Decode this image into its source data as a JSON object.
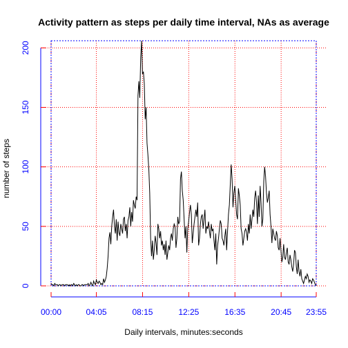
{
  "chart_data": {
    "type": "line",
    "title": "Activity pattern as steps per daily time interval, NAs as average",
    "xlabel": "Daily intervals, minutes:seconds",
    "ylabel": "number of steps",
    "x_tick_labels": [
      "00:00",
      "04:05",
      "08:15",
      "12:25",
      "16:35",
      "20:45",
      "23:55"
    ],
    "x_tick_indices": [
      0,
      49,
      99,
      149,
      199,
      249,
      287
    ],
    "y_ticks": [
      0,
      50,
      100,
      150,
      200
    ],
    "xlim": [
      0,
      287
    ],
    "ylim": [
      0,
      206
    ],
    "grid": true,
    "colors": {
      "line": "#000000",
      "grid": "#ff0000",
      "axis": "#0000ff",
      "tick_label": "#0000ff",
      "title": "#000000"
    },
    "series": [
      {
        "values": [
          2,
          1,
          1,
          0,
          2,
          1,
          1,
          1,
          0,
          1,
          1,
          0,
          1,
          1,
          1,
          0,
          1,
          1,
          1,
          0,
          1,
          0,
          1,
          1,
          0,
          2,
          1,
          0,
          1,
          0,
          1,
          1,
          0,
          0,
          1,
          1,
          0,
          1,
          1,
          1,
          1,
          2,
          0,
          1,
          3,
          1,
          0,
          4,
          2,
          1,
          5,
          3,
          2,
          4,
          3,
          1,
          2,
          1,
          6,
          3,
          5,
          8,
          15,
          25,
          40,
          45,
          35,
          50,
          58,
          64,
          50,
          44,
          56,
          38,
          54,
          45,
          42,
          52,
          48,
          44,
          56,
          58,
          46,
          52,
          40,
          55,
          58,
          66,
          50,
          62,
          54,
          72,
          68,
          65,
          75,
          72,
          160,
          172,
          158,
          192,
          206,
          178,
          180,
          170,
          140,
          150,
          120,
          110,
          98,
          78,
          40,
          25,
          38,
          22,
          30,
          42,
          36,
          26,
          52,
          48,
          40,
          46,
          34,
          38,
          30,
          35,
          26,
          38,
          22,
          28,
          34,
          30,
          40,
          44,
          38,
          48,
          52,
          50,
          32,
          40,
          58,
          52,
          54,
          90,
          96,
          80,
          72,
          56,
          40,
          50,
          28,
          48,
          54,
          62,
          68,
          60,
          36,
          44,
          52,
          58,
          64,
          58,
          70,
          34,
          40,
          52,
          58,
          60,
          48,
          56,
          64,
          44,
          50,
          48,
          54,
          46,
          40,
          52,
          46,
          48,
          38,
          30,
          44,
          18,
          34,
          40,
          48,
          55,
          52,
          40,
          38,
          34,
          42,
          48,
          30,
          46,
          60,
          68,
          85,
          102,
          90,
          66,
          78,
          84,
          72,
          60,
          56,
          82,
          76,
          68,
          48,
          44,
          34,
          40,
          46,
          48,
          45,
          38,
          52,
          44,
          60,
          48,
          56,
          64,
          58,
          74,
          80,
          70,
          52,
          76,
          58,
          84,
          70,
          50,
          56,
          88,
          100,
          92,
          78,
          70,
          74,
          80,
          60,
          50,
          36,
          48,
          44,
          40,
          38,
          46,
          42,
          32,
          30,
          40,
          30,
          20,
          24,
          35,
          24,
          22,
          28,
          32,
          20,
          18,
          26,
          22,
          16,
          12,
          18,
          30,
          28,
          16,
          10,
          22,
          12,
          8,
          14,
          6,
          4,
          2,
          5,
          8,
          6,
          10,
          8,
          3,
          5,
          4,
          2,
          6,
          5,
          3,
          1,
          0
        ]
      }
    ]
  }
}
